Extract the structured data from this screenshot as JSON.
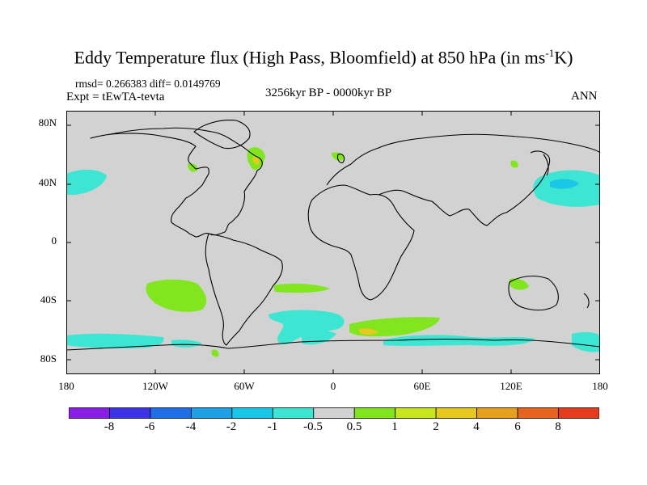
{
  "title": {
    "main": "Eddy Temperature flux (High Pass, Bloomfield) at 850 hPa (in ms",
    "sup": "-1",
    "tail": "K)"
  },
  "stats": "rmsd= 0.266383 diff= 0.0149769",
  "experiment": "Expt = tEwTA-tevta",
  "period": "3256kyr BP - 0000kyr BP",
  "season": "ANN",
  "axes": {
    "lat_ticks": [
      "80N",
      "40N",
      "0",
      "40S",
      "80S"
    ],
    "lat_values": [
      80,
      40,
      0,
      -40,
      -80
    ],
    "lon_ticks": [
      "180",
      "120W",
      "60W",
      "0",
      "60E",
      "120E",
      "180"
    ],
    "lon_values": [
      -180,
      -120,
      -60,
      0,
      60,
      120,
      180
    ],
    "lat_range": [
      -90,
      90
    ],
    "lon_range": [
      -180,
      180
    ]
  },
  "colorbar": {
    "labels": [
      "-8",
      "-6",
      "-4",
      "-2",
      "-1",
      "-0.5",
      "0.5",
      "1",
      "2",
      "4",
      "6",
      "8"
    ],
    "colors": [
      "#8b1ee6",
      "#3c32e6",
      "#1e6ee6",
      "#1ea0e6",
      "#18c8e6",
      "#3ce6d2",
      "#d2d2d2",
      "#82e61e",
      "#c8e61e",
      "#e6c81e",
      "#e6a01e",
      "#e6641e",
      "#e63c1e"
    ]
  },
  "map_colors": {
    "background": "#d2d2d2",
    "cyan": "#3ce6d2",
    "light_blue": "#18c8e6",
    "green": "#82e61e",
    "yellow": "#e6c81e"
  }
}
